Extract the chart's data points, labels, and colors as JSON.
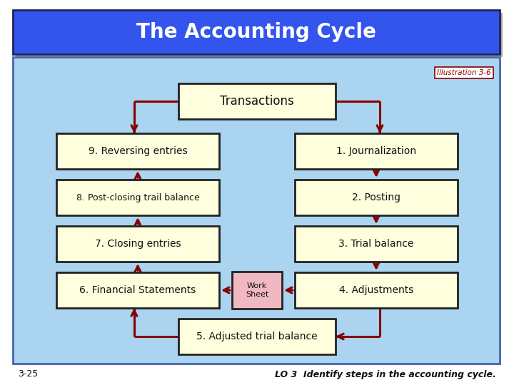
{
  "title": "The Accounting Cycle",
  "title_bg": "#3355ee",
  "title_color": "#ffffff",
  "outer_bg": "#ffffff",
  "main_bg": "#aad4f0",
  "box_bg": "#ffffdd",
  "box_border": "#222222",
  "arrow_color": "#880000",
  "worksheet_bg": "#f0b8c0",
  "illustration_text": "Illustration 3-6",
  "illustration_color": "#880000",
  "footer_left": "3-25",
  "footer_right": "LO 3  Identify steps in the accounting cycle.",
  "footer_color": "#111111"
}
